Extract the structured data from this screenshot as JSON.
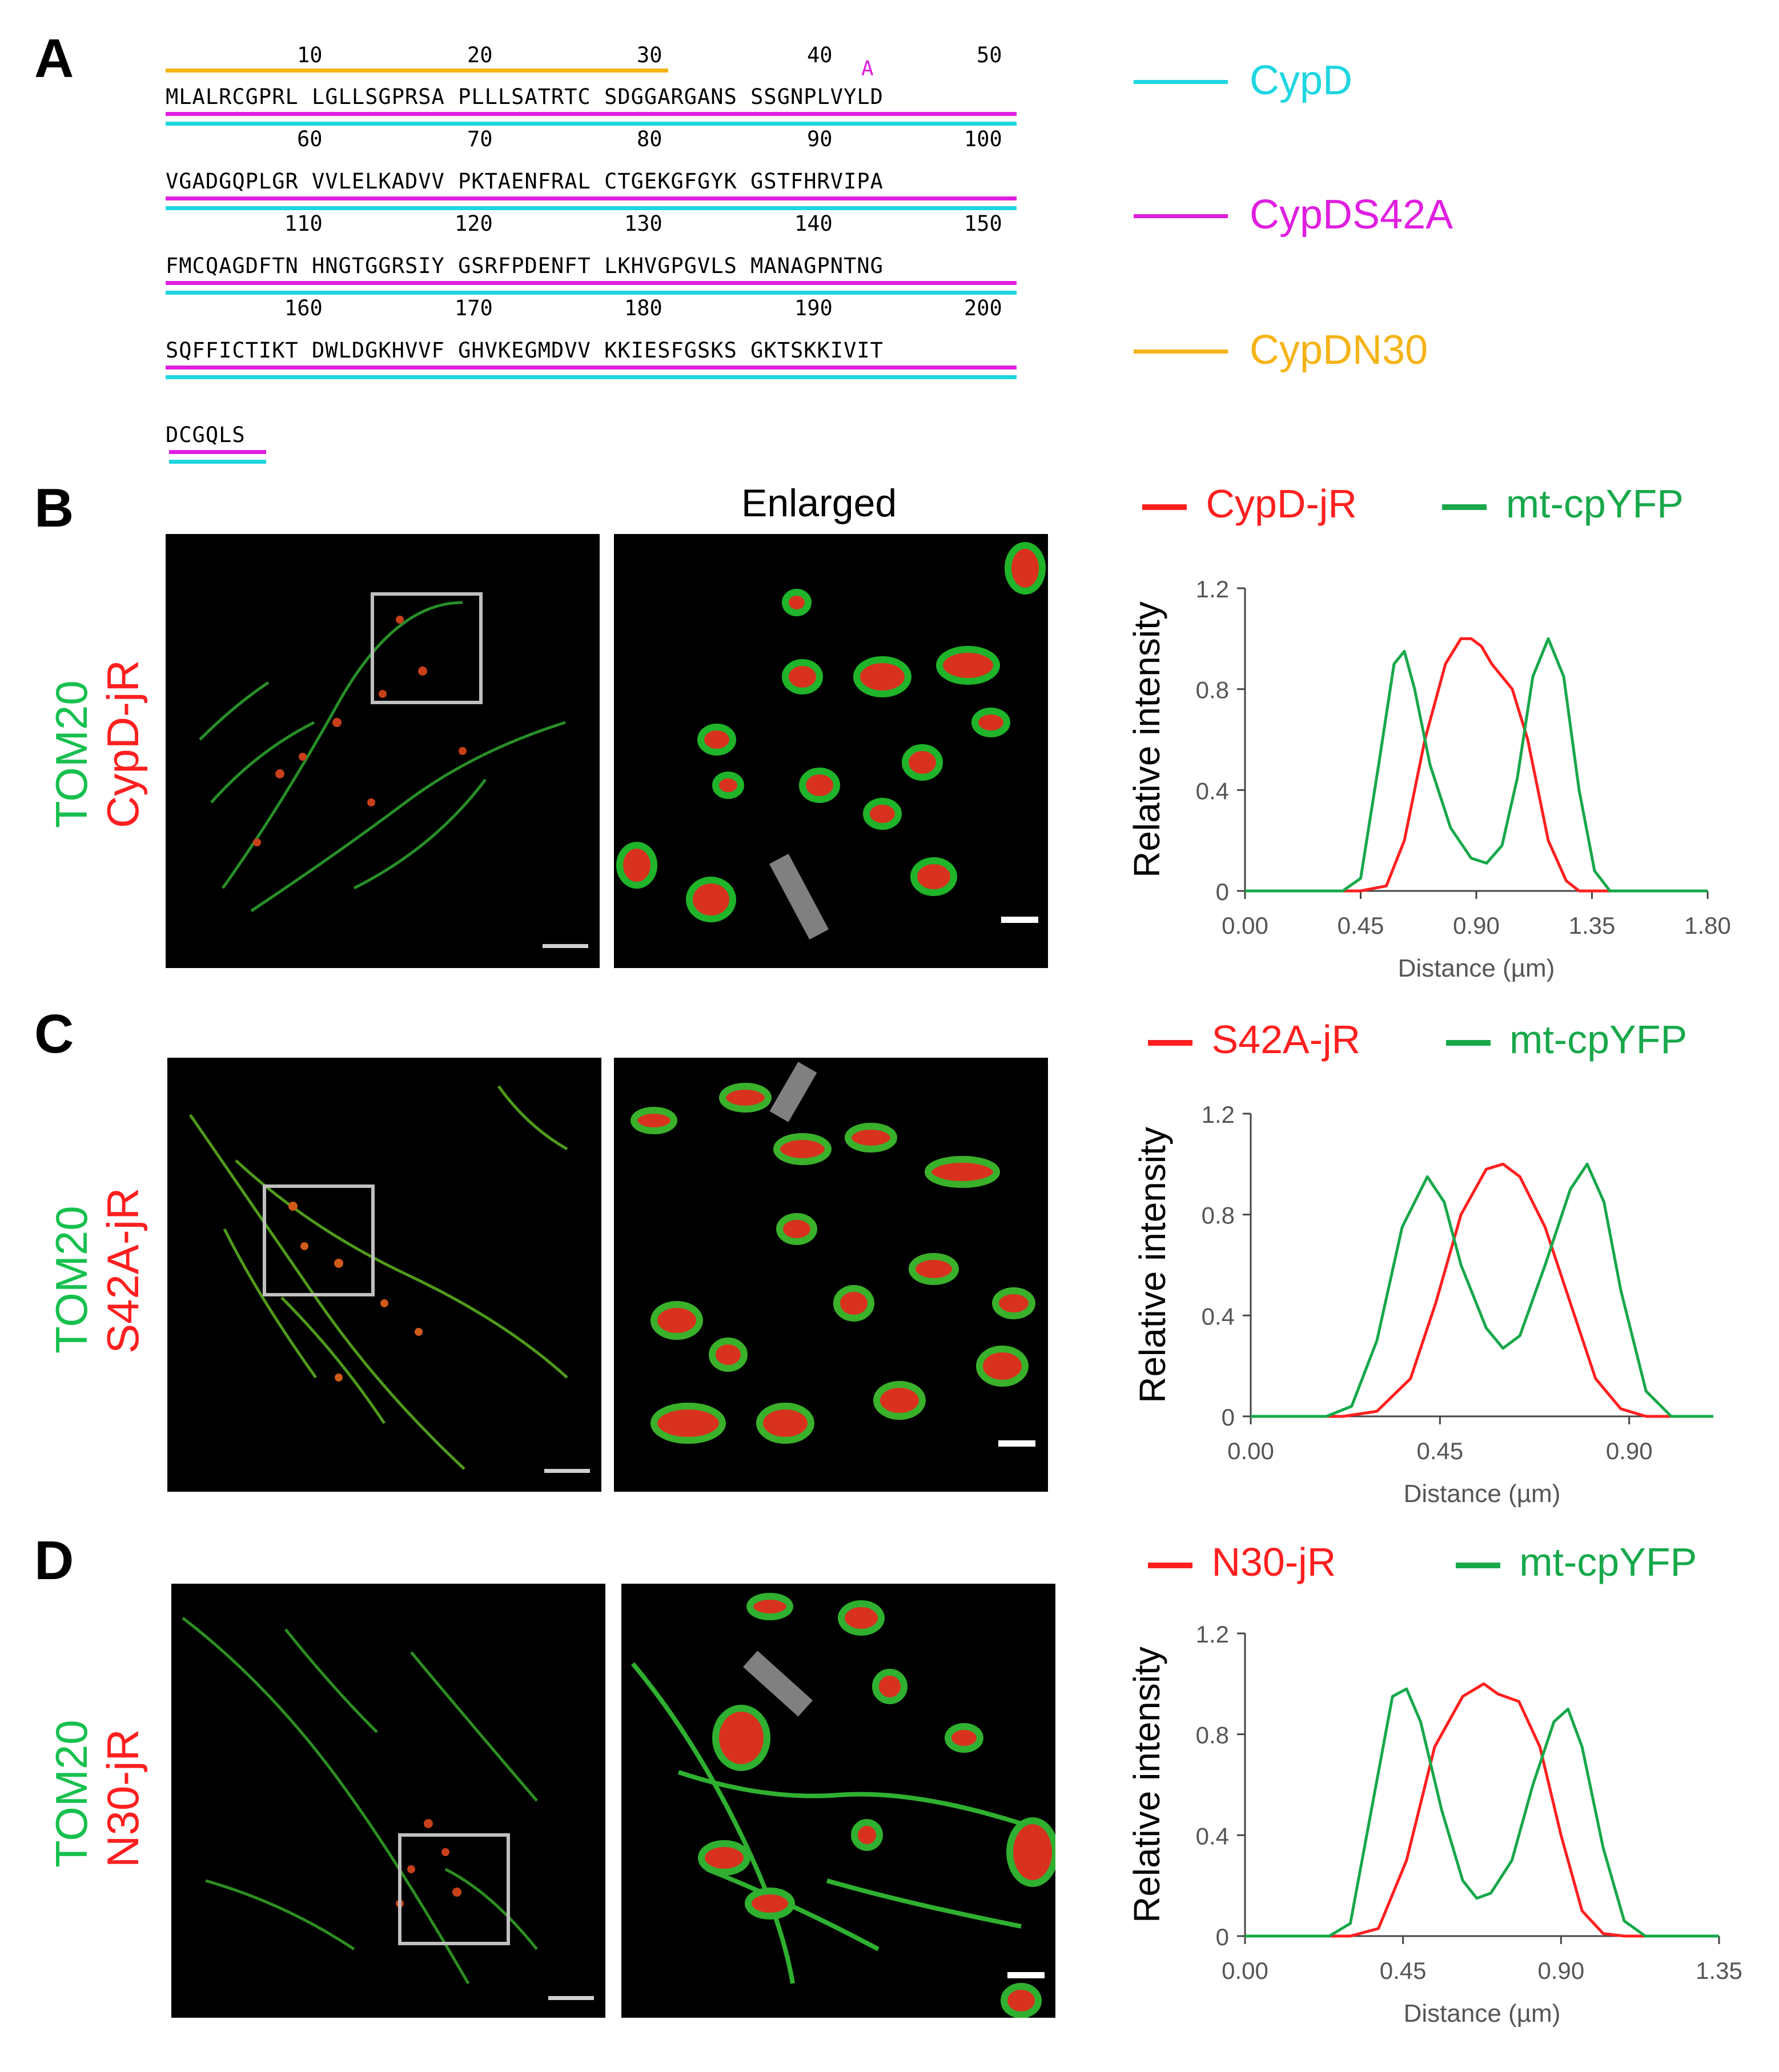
{
  "panel_a": {
    "letter": "A",
    "residue_numbers": [
      "10",
      "20",
      "30",
      "40",
      "50",
      "60",
      "70",
      "80",
      "90",
      "100",
      "110",
      "120",
      "130",
      "140",
      "150",
      "160",
      "170",
      "180",
      "190",
      "200"
    ],
    "mutation_marker": "A",
    "sequence_rows": [
      "MLALRCGPRL LGLLSGPRSA PLLLSATRTC SDGGARGANS SSGNPLVYLD",
      "VGADGQPLGR VVLELKADVV PKTAENFRAL CTGEKGFGYK GSTFHRVIPA",
      "FMCQAGDFTN HNGTGGRSIY GSRFPDENFT LKHVGPGVLS MANAGPNTNG",
      "SQFFICTIKT DWLDGKHVVF GHVKEGMDVV KKIESFGSKS GKTSKKIVIT",
      "DCGQLS"
    ],
    "legend": [
      {
        "label": "CypD",
        "color": "#1fd6e0"
      },
      {
        "label": "CypDS42A",
        "color": "#e01ee0"
      },
      {
        "label": "CypDN30",
        "color": "#f5b316"
      }
    ]
  },
  "panel_b": {
    "letter": "B",
    "enlarged_title": "Enlarged",
    "side_label_green": "TOM20",
    "side_label_red": "CypD-jR",
    "legend_red": "CypD-jR",
    "legend_green": "mt-cpYFP"
  },
  "panel_c": {
    "letter": "C",
    "side_label_green": "TOM20",
    "side_label_red": "S42A-jR",
    "legend_red": "S42A-jR",
    "legend_green": "mt-cpYFP"
  },
  "panel_d": {
    "letter": "D",
    "side_label_green": "TOM20",
    "side_label_red": "N30-jR",
    "legend_red": "N30-jR",
    "legend_green": "mt-cpYFP"
  },
  "colors": {
    "red_series": "#ff1f1f",
    "green_series": "#17a84a",
    "green_label": "#17c04e",
    "red_label": "#ff1f1f"
  },
  "chart_data": [
    {
      "type": "line",
      "ylabel": "Relative intensity",
      "xlabel": "Distance (µm)",
      "xticks": [
        "0.00",
        "0.45",
        "0.90",
        "1.35",
        "1.80"
      ],
      "yticks": [
        "0",
        "0.4",
        "0.8",
        "1.2"
      ],
      "xlim": [
        0,
        1.8
      ],
      "ylim": [
        0,
        1.2
      ],
      "series": [
        {
          "name": "CypD-jR",
          "x": [
            0,
            0.45,
            0.55,
            0.62,
            0.7,
            0.78,
            0.84,
            0.88,
            0.92,
            0.96,
            1.04,
            1.1,
            1.18,
            1.25,
            1.3,
            1.8
          ],
          "y": [
            0,
            0,
            0.02,
            0.2,
            0.6,
            0.9,
            1.0,
            1.0,
            0.97,
            0.9,
            0.8,
            0.6,
            0.2,
            0.04,
            0,
            0
          ]
        },
        {
          "name": "mt-cpYFP",
          "x": [
            0,
            0.38,
            0.45,
            0.52,
            0.58,
            0.62,
            0.66,
            0.72,
            0.8,
            0.88,
            0.94,
            1.0,
            1.06,
            1.12,
            1.18,
            1.24,
            1.3,
            1.36,
            1.42,
            1.8
          ],
          "y": [
            0,
            0,
            0.05,
            0.5,
            0.9,
            0.95,
            0.8,
            0.5,
            0.25,
            0.13,
            0.11,
            0.18,
            0.45,
            0.85,
            1.0,
            0.85,
            0.4,
            0.08,
            0,
            0
          ]
        }
      ]
    },
    {
      "type": "line",
      "ylabel": "Relative intensity",
      "xlabel": "Distance (µm)",
      "xticks": [
        "0.00",
        "0.45",
        "0.90"
      ],
      "yticks": [
        "0",
        "0.4",
        "0.8",
        "1.2"
      ],
      "xlim": [
        0,
        1.1
      ],
      "ylim": [
        0,
        1.2
      ],
      "series": [
        {
          "name": "S42A-jR",
          "x": [
            0,
            0.22,
            0.3,
            0.38,
            0.44,
            0.5,
            0.56,
            0.6,
            0.64,
            0.7,
            0.76,
            0.82,
            0.88,
            0.94,
            1.1
          ],
          "y": [
            0,
            0,
            0.02,
            0.15,
            0.45,
            0.8,
            0.98,
            1.0,
            0.95,
            0.75,
            0.45,
            0.15,
            0.03,
            0,
            0
          ]
        },
        {
          "name": "mt-cpYFP",
          "x": [
            0,
            0.18,
            0.24,
            0.3,
            0.36,
            0.42,
            0.46,
            0.5,
            0.56,
            0.6,
            0.64,
            0.7,
            0.76,
            0.8,
            0.84,
            0.88,
            0.94,
            1.0,
            1.1
          ],
          "y": [
            0,
            0,
            0.04,
            0.3,
            0.75,
            0.95,
            0.85,
            0.6,
            0.35,
            0.27,
            0.32,
            0.6,
            0.9,
            1.0,
            0.85,
            0.5,
            0.1,
            0,
            0
          ]
        }
      ]
    },
    {
      "type": "line",
      "ylabel": "Relative intensity",
      "xlabel": "Distance (µm)",
      "xticks": [
        "0.00",
        "0.45",
        "0.90",
        "1.35"
      ],
      "yticks": [
        "0",
        "0.4",
        "0.8",
        "1.2"
      ],
      "xlim": [
        0,
        1.35
      ],
      "ylim": [
        0,
        1.2
      ],
      "series": [
        {
          "name": "N30-jR",
          "x": [
            0,
            0.3,
            0.38,
            0.46,
            0.54,
            0.62,
            0.68,
            0.72,
            0.78,
            0.84,
            0.9,
            0.96,
            1.02,
            1.08,
            1.35
          ],
          "y": [
            0,
            0,
            0.03,
            0.3,
            0.75,
            0.95,
            1.0,
            0.96,
            0.93,
            0.75,
            0.4,
            0.1,
            0.01,
            0,
            0
          ]
        },
        {
          "name": "mt-cpYFP",
          "x": [
            0,
            0.24,
            0.3,
            0.36,
            0.42,
            0.46,
            0.5,
            0.56,
            0.62,
            0.66,
            0.7,
            0.76,
            0.82,
            0.88,
            0.92,
            0.96,
            1.02,
            1.08,
            1.14,
            1.35
          ],
          "y": [
            0,
            0,
            0.05,
            0.5,
            0.95,
            0.98,
            0.85,
            0.5,
            0.22,
            0.15,
            0.17,
            0.3,
            0.6,
            0.85,
            0.9,
            0.75,
            0.35,
            0.06,
            0,
            0
          ]
        }
      ]
    }
  ]
}
